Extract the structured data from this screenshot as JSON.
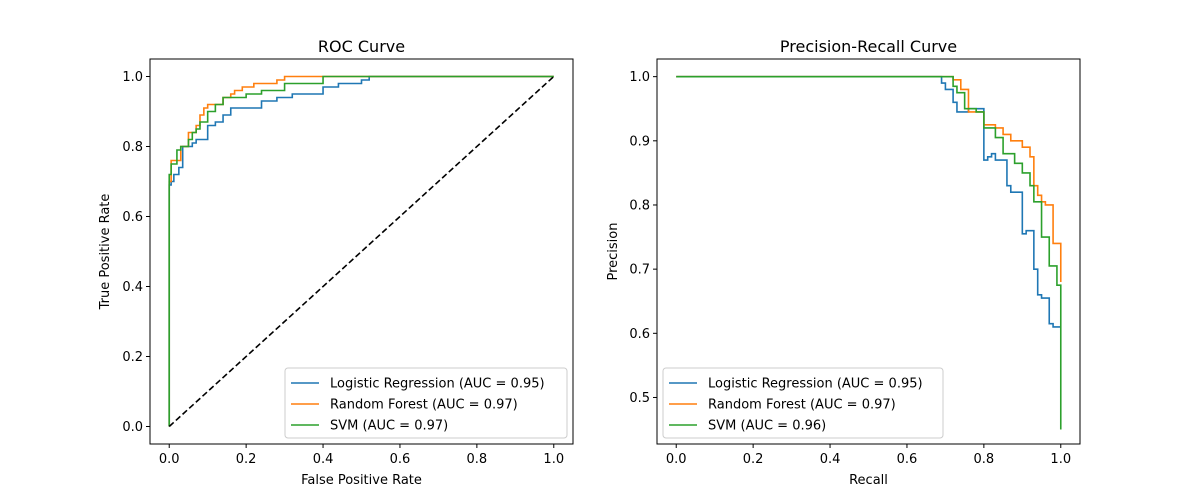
{
  "chart_data": [
    {
      "type": "line",
      "title": "ROC Curve",
      "xlabel": "False Positive Rate",
      "ylabel": "True Positive Rate",
      "xlim": [
        -0.05,
        1.05
      ],
      "ylim": [
        -0.05,
        1.05
      ],
      "xticks": [
        0.0,
        0.2,
        0.4,
        0.6,
        0.8,
        1.0
      ],
      "yticks": [
        0.0,
        0.2,
        0.4,
        0.6,
        0.8,
        1.0
      ],
      "xtick_labels": [
        "0.0",
        "0.2",
        "0.4",
        "0.6",
        "0.8",
        "1.0"
      ],
      "ytick_labels": [
        "0.0",
        "0.2",
        "0.4",
        "0.6",
        "0.8",
        "1.0"
      ],
      "grid": false,
      "legend_position": "bottom-right",
      "series": [
        {
          "name": "Logistic Regression (AUC = 0.95)",
          "color": "#1f77b4",
          "x": [
            0,
            0,
            0.005,
            0.005,
            0.012,
            0.012,
            0.025,
            0.025,
            0.035,
            0.035,
            0.06,
            0.06,
            0.07,
            0.07,
            0.1,
            0.1,
            0.12,
            0.12,
            0.14,
            0.14,
            0.16,
            0.16,
            0.24,
            0.24,
            0.28,
            0.28,
            0.32,
            0.32,
            0.4,
            0.4,
            0.44,
            0.44,
            0.5,
            0.5,
            0.52,
            0.52,
            1.0
          ],
          "y": [
            0,
            0.69,
            0.69,
            0.7,
            0.7,
            0.72,
            0.72,
            0.74,
            0.74,
            0.8,
            0.8,
            0.81,
            0.81,
            0.82,
            0.82,
            0.86,
            0.86,
            0.87,
            0.87,
            0.89,
            0.89,
            0.91,
            0.91,
            0.93,
            0.93,
            0.94,
            0.94,
            0.95,
            0.95,
            0.97,
            0.97,
            0.98,
            0.98,
            0.99,
            0.99,
            1.0,
            1.0
          ]
        },
        {
          "name": "Random Forest (AUC = 0.97)",
          "color": "#ff7f0e",
          "x": [
            0,
            0,
            0.005,
            0.005,
            0.03,
            0.03,
            0.05,
            0.05,
            0.07,
            0.07,
            0.08,
            0.08,
            0.09,
            0.09,
            0.1,
            0.1,
            0.14,
            0.14,
            0.16,
            0.16,
            0.17,
            0.17,
            0.19,
            0.19,
            0.2,
            0.2,
            0.22,
            0.22,
            0.28,
            0.28,
            0.3,
            0.3,
            0.38,
            0.38,
            1.0
          ],
          "y": [
            0,
            0.7,
            0.7,
            0.76,
            0.76,
            0.8,
            0.8,
            0.84,
            0.84,
            0.86,
            0.86,
            0.89,
            0.89,
            0.91,
            0.91,
            0.92,
            0.92,
            0.94,
            0.94,
            0.95,
            0.95,
            0.96,
            0.96,
            0.97,
            0.97,
            0.97,
            0.97,
            0.98,
            0.98,
            0.99,
            0.99,
            1.0,
            1.0,
            1.0,
            1.0
          ]
        },
        {
          "name": "SVM (AUC = 0.97)",
          "color": "#2ca02c",
          "x": [
            0,
            0,
            0.005,
            0.005,
            0.02,
            0.02,
            0.03,
            0.03,
            0.05,
            0.05,
            0.06,
            0.06,
            0.07,
            0.07,
            0.08,
            0.08,
            0.1,
            0.1,
            0.12,
            0.12,
            0.14,
            0.14,
            0.2,
            0.2,
            0.24,
            0.24,
            0.3,
            0.3,
            0.4,
            0.4,
            1.0
          ],
          "y": [
            0,
            0.72,
            0.72,
            0.75,
            0.75,
            0.79,
            0.79,
            0.8,
            0.8,
            0.82,
            0.82,
            0.84,
            0.84,
            0.85,
            0.85,
            0.87,
            0.87,
            0.9,
            0.9,
            0.92,
            0.92,
            0.94,
            0.94,
            0.95,
            0.95,
            0.96,
            0.96,
            0.98,
            0.98,
            1.0,
            1.0
          ]
        },
        {
          "name": "",
          "color": "#000000",
          "dashed": true,
          "x": [
            0,
            1
          ],
          "y": [
            0,
            1
          ]
        }
      ]
    },
    {
      "type": "line",
      "title": "Precision-Recall Curve",
      "xlabel": "Recall",
      "ylabel": "Precision",
      "xlim": [
        -0.05,
        1.05
      ],
      "ylim": [
        0.4275,
        1.0275
      ],
      "xticks": [
        0.0,
        0.2,
        0.4,
        0.6,
        0.8,
        1.0
      ],
      "yticks": [
        0.5,
        0.6,
        0.7,
        0.8,
        0.9,
        1.0
      ],
      "xtick_labels": [
        "0.0",
        "0.2",
        "0.4",
        "0.6",
        "0.8",
        "1.0"
      ],
      "ytick_labels": [
        "0.5",
        "0.6",
        "0.7",
        "0.8",
        "0.9",
        "1.0"
      ],
      "grid": false,
      "legend_position": "bottom-left",
      "series": [
        {
          "name": "Logistic Regression (AUC = 0.95)",
          "color": "#1f77b4",
          "x": [
            0,
            0.69,
            0.69,
            0.7,
            0.7,
            0.72,
            0.72,
            0.73,
            0.73,
            0.76,
            0.76,
            0.8,
            0.8,
            0.81,
            0.81,
            0.82,
            0.82,
            0.83,
            0.83,
            0.86,
            0.86,
            0.87,
            0.87,
            0.9,
            0.9,
            0.91,
            0.91,
            0.93,
            0.93,
            0.94,
            0.94,
            0.95,
            0.95,
            0.97,
            0.97,
            0.98,
            0.98,
            0.99,
            0.99,
            1.0,
            1.0
          ],
          "y": [
            1.0,
            1.0,
            0.99,
            0.99,
            0.98,
            0.98,
            0.96,
            0.96,
            0.945,
            0.945,
            0.95,
            0.95,
            0.87,
            0.87,
            0.875,
            0.875,
            0.88,
            0.88,
            0.87,
            0.87,
            0.83,
            0.83,
            0.82,
            0.82,
            0.755,
            0.755,
            0.76,
            0.76,
            0.7,
            0.7,
            0.66,
            0.66,
            0.655,
            0.655,
            0.615,
            0.615,
            0.61,
            0.61,
            0.61,
            0.61,
            0.61
          ]
        },
        {
          "name": "Random Forest (AUC = 0.97)",
          "color": "#ff7f0e",
          "x": [
            0,
            0.72,
            0.72,
            0.74,
            0.74,
            0.76,
            0.76,
            0.8,
            0.8,
            0.83,
            0.83,
            0.85,
            0.85,
            0.87,
            0.87,
            0.9,
            0.9,
            0.92,
            0.92,
            0.93,
            0.93,
            0.94,
            0.94,
            0.95,
            0.95,
            0.96,
            0.96,
            0.98,
            0.98,
            1.0,
            1.0
          ],
          "y": [
            1.0,
            1.0,
            0.995,
            0.995,
            0.98,
            0.98,
            0.945,
            0.945,
            0.925,
            0.925,
            0.92,
            0.92,
            0.91,
            0.91,
            0.9,
            0.9,
            0.89,
            0.89,
            0.875,
            0.875,
            0.83,
            0.83,
            0.815,
            0.815,
            0.805,
            0.805,
            0.8,
            0.8,
            0.74,
            0.74,
            0.68
          ]
        },
        {
          "name": "SVM (AUC = 0.96)",
          "color": "#2ca02c",
          "x": [
            0,
            0.72,
            0.72,
            0.73,
            0.73,
            0.75,
            0.75,
            0.78,
            0.78,
            0.8,
            0.8,
            0.83,
            0.83,
            0.85,
            0.85,
            0.88,
            0.88,
            0.9,
            0.9,
            0.92,
            0.92,
            0.93,
            0.93,
            0.95,
            0.95,
            0.97,
            0.97,
            0.99,
            0.99,
            1.0,
            1.0
          ],
          "y": [
            1.0,
            1.0,
            0.985,
            0.985,
            0.975,
            0.975,
            0.95,
            0.95,
            0.945,
            0.945,
            0.92,
            0.92,
            0.905,
            0.905,
            0.88,
            0.88,
            0.865,
            0.865,
            0.85,
            0.85,
            0.83,
            0.83,
            0.805,
            0.805,
            0.75,
            0.75,
            0.705,
            0.705,
            0.675,
            0.675,
            0.45
          ]
        }
      ]
    }
  ]
}
